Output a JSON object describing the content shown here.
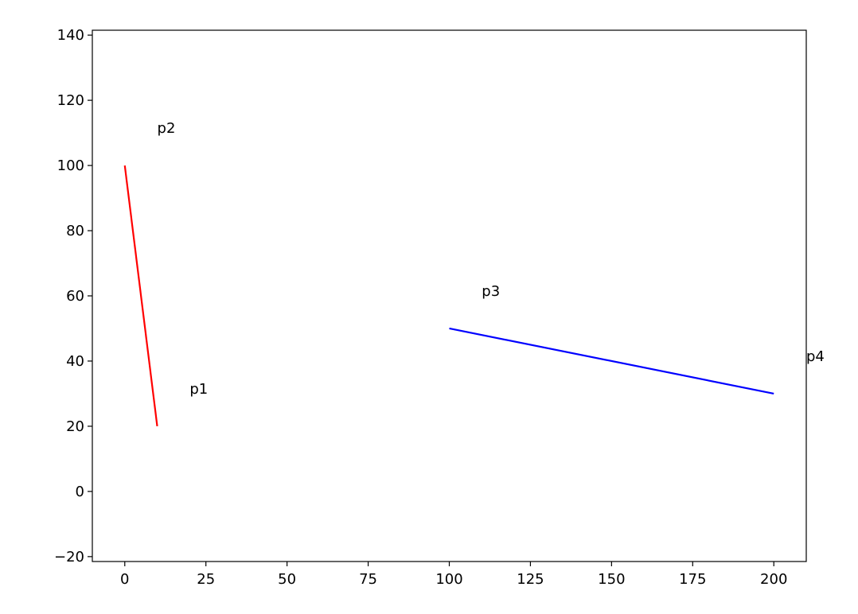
{
  "chart_data": {
    "type": "line",
    "series": [
      {
        "color": "#ff0000",
        "x": [
          10,
          0
        ],
        "values": [
          20,
          100
        ]
      },
      {
        "color": "#0000ff",
        "x": [
          100,
          200
        ],
        "values": [
          50,
          30
        ]
      }
    ],
    "annotations": [
      {
        "text": "p1",
        "x": 20,
        "y": 30
      },
      {
        "text": "p2",
        "x": 10,
        "y": 110
      },
      {
        "text": "p3",
        "x": 110,
        "y": 60
      },
      {
        "text": "p4",
        "x": 210,
        "y": 40
      }
    ],
    "xlim": [
      -10,
      210
    ],
    "xticks": [
      0,
      25,
      50,
      75,
      100,
      125,
      150,
      175,
      200
    ],
    "ylim": [
      -21.5,
      141.5
    ],
    "yticks": [
      {
        "value": -20,
        "label": "−20"
      },
      0,
      20,
      40,
      60,
      80,
      100,
      120,
      140
    ],
    "grid": false
  }
}
